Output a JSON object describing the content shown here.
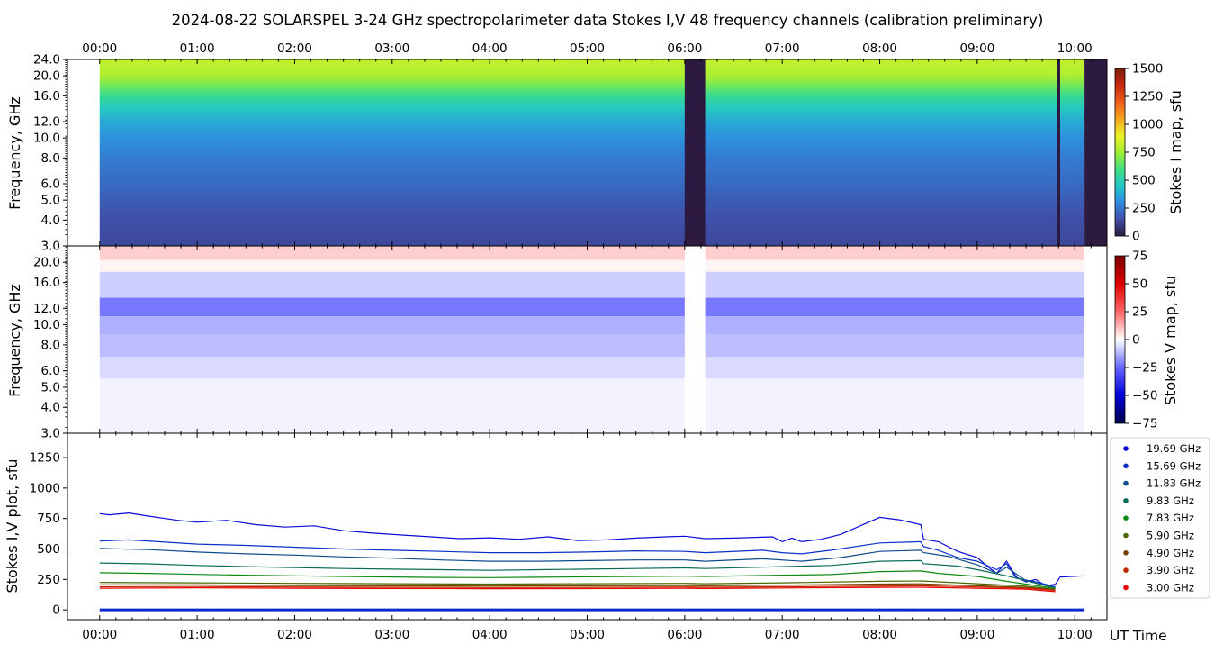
{
  "title": "2024-08-22  SOLARSPEL  3-24 GHz spectropolarimeter data   Stokes I,V   48 frequency channels   (calibration preliminary)",
  "chart_data": [
    {
      "type": "heatmap",
      "panel": "stokes_i_map",
      "ylabel": "Frequency, GHz",
      "yscale": "log",
      "ylim": [
        3.0,
        24.0
      ],
      "yticks": [
        "3.0",
        "4.0",
        "5.0",
        "6.0",
        "8.0",
        "10.0",
        "12.0",
        "16.0",
        "20.0",
        "24.0"
      ],
      "xlim_hours": [
        -0.33,
        10.33
      ],
      "data_start_hours": 0.0,
      "xticks": [
        "00:00",
        "01:00",
        "02:00",
        "03:00",
        "04:00",
        "05:00",
        "06:00",
        "07:00",
        "08:00",
        "09:00",
        "10:00"
      ],
      "colorbar": {
        "label": "Stokes I map, sfu",
        "range": [
          0,
          1500
        ],
        "ticks": [
          "0",
          "250",
          "500",
          "750",
          "1000",
          "1250",
          "1500"
        ],
        "colors": [
          "#2d1a40",
          "#3f4fa8",
          "#2f8ce0",
          "#22c7c9",
          "#3fe07e",
          "#a3ef34",
          "#eaf024",
          "#f4a621",
          "#ef5c1c",
          "#c72610",
          "#7a1e0a"
        ]
      },
      "gaps_hours": [
        [
          6.0,
          6.21
        ],
        [
          9.82,
          9.85
        ],
        [
          10.1,
          10.33
        ]
      ]
    },
    {
      "type": "heatmap",
      "panel": "stokes_v_map",
      "ylabel": "Frequency, GHz",
      "yscale": "log",
      "ylim": [
        3.0,
        24.0
      ],
      "yticks": [
        "3.0",
        "4.0",
        "5.0",
        "6.0",
        "8.0",
        "10.0",
        "12.0",
        "16.0",
        "20.0"
      ],
      "xlim_hours": [
        -0.33,
        10.33
      ],
      "colorbar": {
        "label": "Stokes V map, sfu",
        "range": [
          -75,
          75
        ],
        "ticks": [
          "−75",
          "−50",
          "−25",
          "0",
          "25",
          "50",
          "75"
        ],
        "colors": [
          "#00004a",
          "#0000d8",
          "#6666ff",
          "#ffffff",
          "#ff6666",
          "#dd0000",
          "#7a0000"
        ]
      },
      "bands": [
        {
          "from_ghz": 20.5,
          "to_ghz": 24.0,
          "value": 8
        },
        {
          "from_ghz": 18.0,
          "to_ghz": 20.5,
          "value": 2
        },
        {
          "from_ghz": 13.5,
          "to_ghz": 18.0,
          "value": -8
        },
        {
          "from_ghz": 11.0,
          "to_ghz": 13.5,
          "value": -22
        },
        {
          "from_ghz": 9.0,
          "to_ghz": 11.0,
          "value": -13
        },
        {
          "from_ghz": 7.0,
          "to_ghz": 9.0,
          "value": -11
        },
        {
          "from_ghz": 5.5,
          "to_ghz": 7.0,
          "value": -6
        },
        {
          "from_ghz": 3.0,
          "to_ghz": 5.5,
          "value": -2
        }
      ]
    },
    {
      "type": "line",
      "panel": "stokes_iv_plot",
      "ylabel": "Stokes I,V plot, sfu",
      "xlabel": "UT Time",
      "ylim": [
        -80,
        1450
      ],
      "yticks": [
        "0",
        "250",
        "500",
        "750",
        "1000",
        "1250"
      ],
      "xlim_hours": [
        -0.33,
        10.33
      ],
      "xticks": [
        "00:00",
        "01:00",
        "02:00",
        "03:00",
        "04:00",
        "05:00",
        "06:00",
        "07:00",
        "08:00",
        "09:00",
        "10:00"
      ],
      "series": [
        {
          "name": "19.69 GHz",
          "color": "#0b0bd6",
          "points": [
            [
              0,
              790
            ],
            [
              0.1,
              780
            ],
            [
              0.3,
              795
            ],
            [
              0.5,
              770
            ],
            [
              0.8,
              735
            ],
            [
              1.0,
              720
            ],
            [
              1.3,
              735
            ],
            [
              1.6,
              700
            ],
            [
              1.9,
              680
            ],
            [
              2.2,
              690
            ],
            [
              2.5,
              650
            ],
            [
              2.8,
              630
            ],
            [
              3.1,
              615
            ],
            [
              3.4,
              600
            ],
            [
              3.7,
              585
            ],
            [
              4.0,
              592
            ],
            [
              4.3,
              580
            ],
            [
              4.6,
              600
            ],
            [
              4.9,
              570
            ],
            [
              5.2,
              575
            ],
            [
              5.5,
              590
            ],
            [
              5.8,
              600
            ],
            [
              6.0,
              605
            ],
            [
              6.21,
              585
            ],
            [
              6.5,
              590
            ],
            [
              6.9,
              600
            ],
            [
              7.0,
              560
            ],
            [
              7.1,
              590
            ],
            [
              7.2,
              560
            ],
            [
              7.4,
              580
            ],
            [
              7.6,
              620
            ],
            [
              7.8,
              690
            ],
            [
              8.0,
              760
            ],
            [
              8.2,
              740
            ],
            [
              8.42,
              700
            ],
            [
              8.45,
              580
            ],
            [
              8.6,
              560
            ],
            [
              8.8,
              480
            ],
            [
              9.0,
              430
            ],
            [
              9.1,
              360
            ],
            [
              9.2,
              300
            ],
            [
              9.3,
              400
            ],
            [
              9.4,
              270
            ],
            [
              9.5,
              230
            ],
            [
              9.6,
              250
            ],
            [
              9.7,
              200
            ],
            [
              9.8,
              210
            ],
            [
              9.85,
              270
            ],
            [
              10.1,
              280
            ]
          ]
        },
        {
          "name": "15.69 GHz",
          "color": "#0a32c8",
          "points": [
            [
              0,
              565
            ],
            [
              0.3,
              575
            ],
            [
              0.6,
              560
            ],
            [
              1.0,
              540
            ],
            [
              1.5,
              530
            ],
            [
              2.0,
              515
            ],
            [
              2.5,
              500
            ],
            [
              3.0,
              490
            ],
            [
              3.5,
              480
            ],
            [
              4.0,
              470
            ],
            [
              4.5,
              470
            ],
            [
              5.0,
              475
            ],
            [
              5.5,
              485
            ],
            [
              6.0,
              480
            ],
            [
              6.21,
              470
            ],
            [
              6.8,
              490
            ],
            [
              7.0,
              470
            ],
            [
              7.2,
              460
            ],
            [
              7.5,
              490
            ],
            [
              8.0,
              550
            ],
            [
              8.42,
              560
            ],
            [
              8.45,
              520
            ],
            [
              8.6,
              490
            ],
            [
              8.8,
              430
            ],
            [
              9.0,
              400
            ],
            [
              9.2,
              330
            ],
            [
              9.3,
              380
            ],
            [
              9.4,
              260
            ],
            [
              9.6,
              230
            ],
            [
              9.8,
              190
            ]
          ]
        },
        {
          "name": "11.83 GHz",
          "color": "#0b4a8c",
          "points": [
            [
              0,
              505
            ],
            [
              0.5,
              495
            ],
            [
              1.0,
              475
            ],
            [
              1.5,
              460
            ],
            [
              2.0,
              450
            ],
            [
              2.5,
              435
            ],
            [
              3.0,
              425
            ],
            [
              3.5,
              410
            ],
            [
              4.0,
              400
            ],
            [
              4.5,
              400
            ],
            [
              5.0,
              405
            ],
            [
              5.5,
              410
            ],
            [
              6.0,
              410
            ],
            [
              6.21,
              400
            ],
            [
              6.8,
              420
            ],
            [
              7.2,
              400
            ],
            [
              7.6,
              430
            ],
            [
              8.0,
              480
            ],
            [
              8.42,
              490
            ],
            [
              8.45,
              470
            ],
            [
              8.7,
              440
            ],
            [
              9.0,
              370
            ],
            [
              9.2,
              300
            ],
            [
              9.3,
              350
            ],
            [
              9.5,
              240
            ],
            [
              9.8,
              180
            ]
          ]
        },
        {
          "name": "9.83 GHz",
          "color": "#0a6a5a",
          "points": [
            [
              0,
              385
            ],
            [
              0.5,
              378
            ],
            [
              1.0,
              365
            ],
            [
              1.5,
              355
            ],
            [
              2.0,
              348
            ],
            [
              2.5,
              340
            ],
            [
              3.0,
              335
            ],
            [
              3.5,
              330
            ],
            [
              4.0,
              325
            ],
            [
              4.5,
              330
            ],
            [
              5.0,
              335
            ],
            [
              5.5,
              340
            ],
            [
              6.0,
              345
            ],
            [
              6.21,
              340
            ],
            [
              7.0,
              355
            ],
            [
              7.5,
              365
            ],
            [
              8.0,
              400
            ],
            [
              8.42,
              405
            ],
            [
              8.45,
              380
            ],
            [
              8.8,
              360
            ],
            [
              9.0,
              330
            ],
            [
              9.3,
              280
            ],
            [
              9.6,
              220
            ],
            [
              9.8,
              180
            ]
          ]
        },
        {
          "name": "7.83 GHz",
          "color": "#0e8a14",
          "points": [
            [
              0,
              305
            ],
            [
              0.5,
              300
            ],
            [
              1.0,
              292
            ],
            [
              1.5,
              285
            ],
            [
              2.0,
              280
            ],
            [
              2.5,
              275
            ],
            [
              3.0,
              270
            ],
            [
              3.5,
              267
            ],
            [
              4.0,
              265
            ],
            [
              4.5,
              268
            ],
            [
              5.0,
              272
            ],
            [
              5.5,
              275
            ],
            [
              6.0,
              278
            ],
            [
              6.21,
              275
            ],
            [
              7.0,
              285
            ],
            [
              7.5,
              290
            ],
            [
              8.0,
              315
            ],
            [
              8.42,
              320
            ],
            [
              8.6,
              300
            ],
            [
              9.0,
              275
            ],
            [
              9.3,
              235
            ],
            [
              9.6,
              200
            ],
            [
              9.8,
              175
            ]
          ]
        },
        {
          "name": "5.90 GHz",
          "color": "#4a6a00",
          "points": [
            [
              0,
              225
            ],
            [
              1.0,
              222
            ],
            [
              2.0,
              218
            ],
            [
              3.0,
              215
            ],
            [
              4.0,
              212
            ],
            [
              5.0,
              215
            ],
            [
              6.0,
              218
            ],
            [
              6.21,
              215
            ],
            [
              7.0,
              222
            ],
            [
              8.0,
              235
            ],
            [
              8.42,
              238
            ],
            [
              9.0,
              215
            ],
            [
              9.5,
              195
            ],
            [
              9.8,
              170
            ]
          ]
        },
        {
          "name": "4.90 GHz",
          "color": "#7a4200",
          "points": [
            [
              0,
              205
            ],
            [
              1.0,
              205
            ],
            [
              2.0,
              200
            ],
            [
              3.0,
              198
            ],
            [
              4.0,
              196
            ],
            [
              5.0,
              198
            ],
            [
              6.0,
              200
            ],
            [
              6.21,
              198
            ],
            [
              7.0,
              203
            ],
            [
              8.0,
              212
            ],
            [
              8.42,
              214
            ],
            [
              9.0,
              198
            ],
            [
              9.5,
              185
            ],
            [
              9.8,
              165
            ]
          ]
        },
        {
          "name": "3.90 GHz",
          "color": "#c02a00",
          "points": [
            [
              0,
              190
            ],
            [
              1.0,
              192
            ],
            [
              2.0,
              188
            ],
            [
              3.0,
              186
            ],
            [
              4.0,
              184
            ],
            [
              5.0,
              185
            ],
            [
              6.0,
              188
            ],
            [
              6.21,
              186
            ],
            [
              7.0,
              190
            ],
            [
              8.0,
              196
            ],
            [
              8.42,
              198
            ],
            [
              9.0,
              188
            ],
            [
              9.5,
              178
            ],
            [
              9.8,
              160
            ]
          ]
        },
        {
          "name": "3.00 GHz",
          "color": "#ee0000",
          "points": [
            [
              0,
              178
            ],
            [
              1.0,
              182
            ],
            [
              2.0,
              178
            ],
            [
              3.0,
              176
            ],
            [
              4.0,
              174
            ],
            [
              5.0,
              175
            ],
            [
              6.0,
              178
            ],
            [
              6.21,
              176
            ],
            [
              7.0,
              180
            ],
            [
              8.0,
              185
            ],
            [
              8.42,
              186
            ],
            [
              9.0,
              178
            ],
            [
              9.5,
              170
            ],
            [
              9.8,
              150
            ]
          ]
        }
      ]
    }
  ]
}
